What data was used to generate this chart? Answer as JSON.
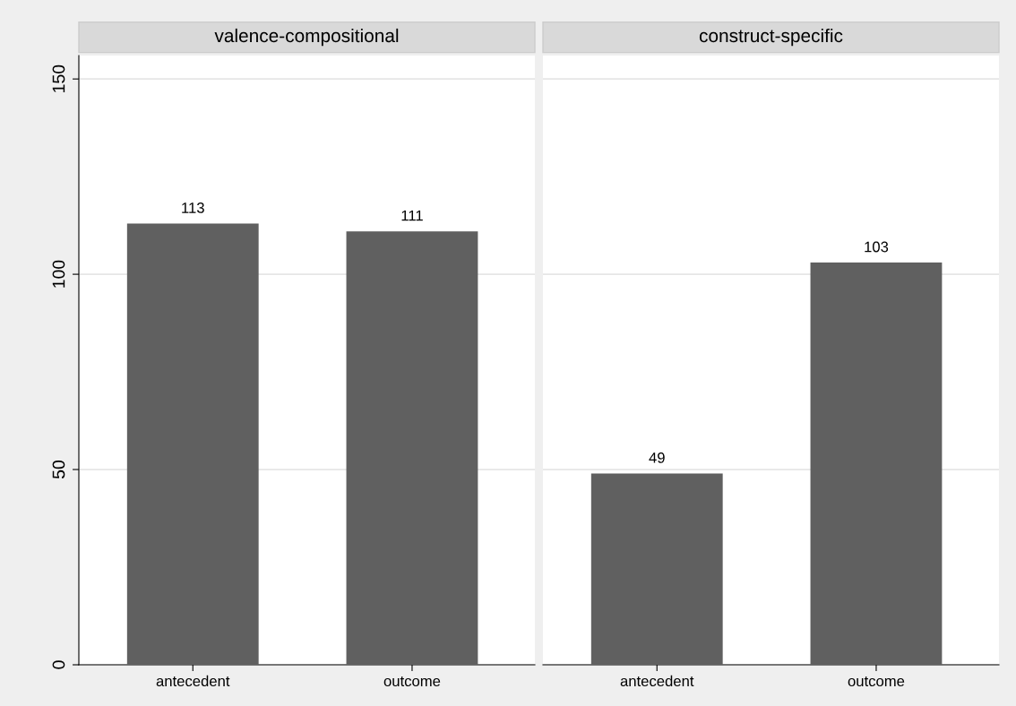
{
  "chart_data": [
    {
      "type": "bar",
      "title": "valence-compositional",
      "categories": [
        "antecedent",
        "outcome"
      ],
      "values": [
        113,
        111
      ],
      "color": "#606060",
      "ylim": [
        0,
        156
      ],
      "yticks": [
        0,
        50,
        100,
        150
      ],
      "grid": "y",
      "data_labels": true
    },
    {
      "type": "bar",
      "title": "construct-specific",
      "categories": [
        "antecedent",
        "outcome"
      ],
      "values": [
        49,
        103
      ],
      "color": "#606060",
      "ylim": [
        0,
        156
      ],
      "yticks": [
        0,
        50,
        100,
        150
      ],
      "grid": "y",
      "data_labels": true,
      "tick_labels": "x"
    }
  ]
}
